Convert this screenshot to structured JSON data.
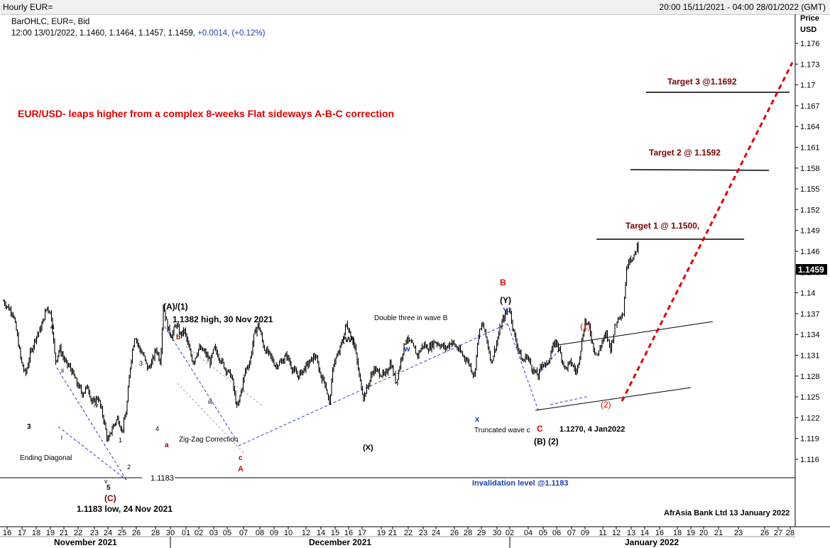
{
  "window": {
    "title": "Hourly EUR=",
    "date_range": "20:00 15/11/2021 - 04:00 28/01/2022 (GMT)"
  },
  "info": {
    "line1": "BarOHLC, EUR=, Bid",
    "line2_prefix": "12:00 13/01/2022, 1.1460, 1.1464, 1.1457, 1.1459, ",
    "line2_change": "+0.0014, (+0.12%)"
  },
  "axis": {
    "price_label": "Price",
    "unit_label": "USD",
    "last_price": "1.1459",
    "y_ticks": [
      "1.176",
      "1.173",
      "1.17",
      "1.167",
      "1.164",
      "1.161",
      "1.158",
      "1.155",
      "1.152",
      "1.149",
      "1.146",
      "1.143",
      "1.14",
      "1.137",
      "1.134",
      "1.131",
      "1.128",
      "1.125",
      "1.122",
      "1.119",
      "1.116"
    ],
    "x_ticks": [
      "16",
      "17",
      "18",
      "19",
      "21",
      "22",
      "23",
      "24",
      "25",
      "26",
      "28",
      "30",
      "01",
      "02",
      "03",
      "05",
      "07",
      "08",
      "09",
      "10",
      "12",
      "14",
      "15",
      "16",
      "17",
      "19",
      "21",
      "22",
      "23",
      "24",
      "26",
      "28",
      "29",
      "30",
      "02",
      "04",
      "05",
      "06",
      "07",
      "09",
      "11",
      "12",
      "13",
      "14",
      "16",
      "18",
      "19",
      "20",
      "21",
      "23",
      "26",
      "27",
      "28"
    ],
    "months": [
      "November 2021",
      "December 2021",
      "January 2022"
    ]
  },
  "annotations": {
    "headline": "EUR/USD- leaps higher from a complex 8-weeks Flat sideways A-B-C correction",
    "target3": "Target 3 @1.1692",
    "target2": "Target 2 @ 1.1592",
    "target1": "Target 1 @ 1.1500,",
    "invalidation": "Invalidation level @1.1183",
    "level_1183": "1.1183",
    "low_note": "1.1183 low, 24 Nov 2021",
    "high_note": "1.1382 high, 30 Nov 2021",
    "jan_low_note": "1.1270, 4 Jan2022",
    "ending_diagonal": "Ending Diagonal",
    "zigzag": "Zig-Zag Correction",
    "double_three": "Double three in wave B",
    "truncated": "Truncated wave c",
    "credit": "AfrAsia Bank Ltd 13 January 2022",
    "wave_A1": "(A)/(1)",
    "wave_C_paren": "(C)",
    "wave_W": "(W)",
    "wave_X": "(X)",
    "wave_Y": "(Y)",
    "wave_B2": "(B) (2)",
    "wave_red_1": "(1)",
    "wave_red_2": "(2)",
    "red_A": "A",
    "red_B": "B",
    "red_C": "C",
    "blue_Y": "Y",
    "blue_w": "w",
    "blue_x": "x",
    "lbl_3": "3",
    "lbl_4": "4",
    "lbl_5": "5",
    "lbl_4b": "4",
    "lbl_3b": "3",
    "lbl_1": "1",
    "lbl_2": "2",
    "lbl_i": "i",
    "lbl_ii": "ii",
    "lbl_iii": "iii",
    "lbl_iv": "iv",
    "lbl_v": "v",
    "lbl_a": "a",
    "lbl_b": "b",
    "lbl_c": "c"
  },
  "chart_data": {
    "type": "ohlc",
    "title": "Hourly EUR=",
    "series": [
      {
        "name": "EUR=",
        "x": [
          "2021-11-16",
          "2021-11-18",
          "2021-11-19",
          "2021-11-22",
          "2021-11-23",
          "2021-11-24",
          "2021-11-25",
          "2021-11-26",
          "2021-11-29",
          "2021-11-30",
          "2021-12-01",
          "2021-12-02",
          "2021-12-03",
          "2021-12-06",
          "2021-12-07",
          "2021-12-08",
          "2021-12-09",
          "2021-12-10",
          "2021-12-13",
          "2021-12-14",
          "2021-12-15",
          "2021-12-16",
          "2021-12-17",
          "2021-12-20",
          "2021-12-21",
          "2021-12-22",
          "2021-12-23",
          "2021-12-24",
          "2021-12-27",
          "2021-12-28",
          "2021-12-29",
          "2021-12-30",
          "2021-12-31",
          "2022-01-03",
          "2022-01-04",
          "2022-01-05",
          "2022-01-06",
          "2022-01-07",
          "2022-01-10",
          "2022-01-11",
          "2022-01-12",
          "2022-01-13"
        ],
        "values": [
          1.138,
          1.135,
          1.13,
          1.1275,
          1.1225,
          1.119,
          1.121,
          1.128,
          1.132,
          1.137,
          1.133,
          1.131,
          1.13,
          1.128,
          1.123,
          1.133,
          1.131,
          1.13,
          1.1285,
          1.127,
          1.126,
          1.133,
          1.134,
          1.124,
          1.127,
          1.1305,
          1.132,
          1.133,
          1.133,
          1.132,
          1.131,
          1.1335,
          1.137,
          1.13,
          1.1275,
          1.131,
          1.13,
          1.133,
          1.134,
          1.135,
          1.144,
          1.1459
        ]
      }
    ],
    "ylabel": "Price USD",
    "ylim": [
      1.114,
      1.178
    ],
    "last_value": 1.1459,
    "levels": [
      {
        "name": "Target 3",
        "value": 1.1692
      },
      {
        "name": "Target 2",
        "value": 1.1592
      },
      {
        "name": "Target 1",
        "value": 1.15
      },
      {
        "name": "Invalidation level",
        "value": 1.1183
      }
    ]
  },
  "colors": {
    "price_bars": "#000000",
    "headline": "#e00000",
    "target_text": "#7a0000",
    "projection": "#e00000",
    "guide_lines": "#2b3bd6",
    "invalidation_text": "#1f3fb0",
    "wave_red": "#e00000",
    "wave_darkred": "#8b0000",
    "wave_blue": "#1f3fb0"
  }
}
